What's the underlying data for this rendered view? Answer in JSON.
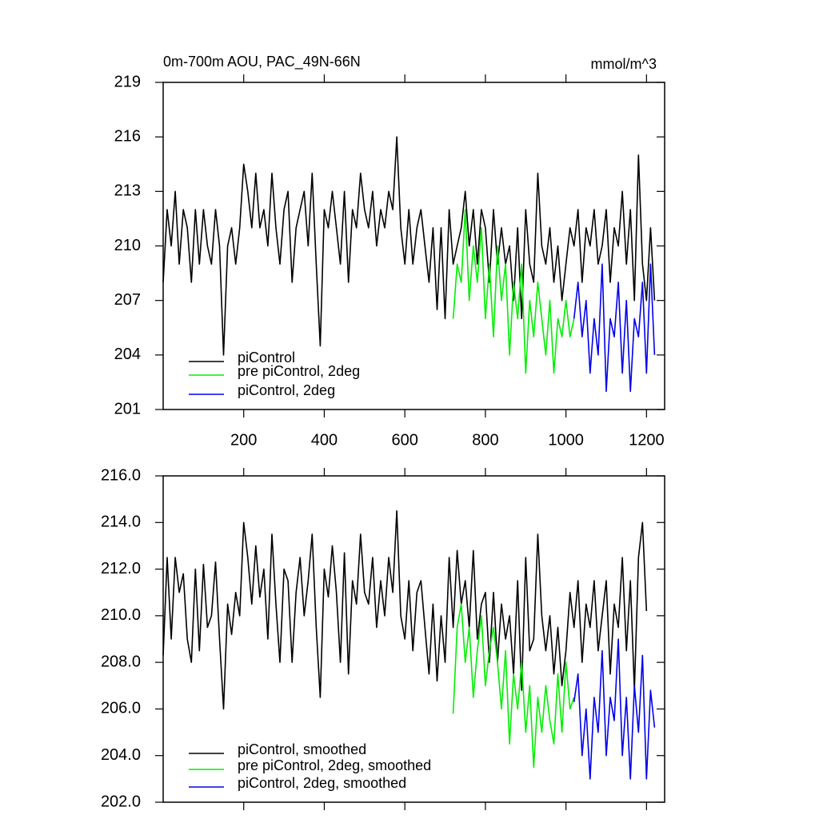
{
  "chart_data": [
    {
      "type": "line",
      "title": "0m-700m AOU, PAC_49N-66N",
      "units_label": "mmol/m^3",
      "xlim": [
        0,
        1245
      ],
      "xticks": [
        200,
        400,
        600,
        800,
        1000,
        1200
      ],
      "ylim": [
        201,
        219
      ],
      "yticks": [
        201,
        204,
        207,
        210,
        213,
        216,
        219
      ],
      "legend": "lower left",
      "series": [
        {
          "name": "piControl",
          "color": "#000000",
          "x": [
            0,
            10,
            20,
            30,
            40,
            50,
            60,
            70,
            80,
            90,
            100,
            110,
            120,
            130,
            140,
            150,
            160,
            170,
            180,
            190,
            200,
            210,
            220,
            230,
            240,
            250,
            260,
            270,
            280,
            290,
            300,
            310,
            320,
            330,
            340,
            350,
            360,
            370,
            380,
            390,
            400,
            410,
            420,
            430,
            440,
            450,
            460,
            470,
            480,
            490,
            500,
            510,
            520,
            530,
            540,
            550,
            560,
            570,
            580,
            590,
            600,
            610,
            620,
            630,
            640,
            650,
            660,
            670,
            680,
            690,
            700,
            710,
            720,
            730,
            740,
            750,
            760,
            770,
            780,
            790,
            800,
            810,
            820,
            830,
            840,
            850,
            860,
            870,
            880,
            890,
            900,
            910,
            920,
            930,
            940,
            950,
            960,
            970,
            980,
            990,
            1000,
            1010,
            1020,
            1030,
            1040,
            1050,
            1060,
            1070,
            1080,
            1090,
            1100,
            1110,
            1120,
            1130,
            1140,
            1150,
            1160,
            1170,
            1180,
            1190,
            1200,
            1210,
            1220
          ],
          "values": [
            208,
            212,
            210,
            213,
            209,
            212,
            211,
            208,
            212,
            209,
            212,
            210,
            209,
            212,
            210,
            204,
            210,
            211,
            209,
            211,
            214.5,
            213,
            211,
            214,
            211,
            212,
            210,
            214,
            211,
            209,
            212,
            213,
            208,
            211,
            212,
            213,
            210,
            214,
            209,
            204.5,
            212,
            211,
            213,
            211,
            209,
            213,
            208,
            212,
            211,
            214,
            212,
            211,
            213,
            210,
            212,
            211,
            213,
            212,
            216,
            211,
            209,
            212,
            209,
            211,
            212,
            210,
            208,
            211,
            206.5,
            211,
            206,
            212,
            209,
            210,
            211,
            213,
            210,
            212,
            209,
            212,
            211,
            208,
            212,
            209,
            211,
            209,
            210,
            207,
            211,
            206,
            212,
            209,
            208,
            214,
            210,
            209,
            211,
            208,
            210,
            207,
            209,
            211,
            210,
            212,
            208,
            211,
            210,
            212,
            209,
            210,
            212,
            208,
            211,
            210,
            213,
            209,
            212,
            207,
            215,
            209,
            207,
            211,
            207
          ]
        },
        {
          "name": "pre piControl, 2deg",
          "color": "#00ee00",
          "x": [
            720,
            730,
            740,
            750,
            760,
            770,
            780,
            790,
            800,
            810,
            820,
            830,
            840,
            850,
            860,
            870,
            880,
            890,
            900,
            910,
            920,
            930,
            940,
            950,
            960,
            970,
            980,
            990,
            1000,
            1010,
            1020
          ],
          "values": [
            206,
            209,
            208,
            212,
            207,
            210,
            208,
            211,
            206,
            209,
            205,
            210,
            207,
            209,
            204,
            208,
            206,
            209,
            203,
            207,
            205,
            208,
            206,
            204,
            207,
            203,
            206,
            205,
            207,
            205,
            206
          ]
        },
        {
          "name": "piControl, 2deg",
          "color": "#0000ee",
          "x": [
            1020,
            1030,
            1040,
            1050,
            1060,
            1070,
            1080,
            1090,
            1100,
            1110,
            1120,
            1130,
            1140,
            1150,
            1160,
            1170,
            1180,
            1190,
            1200,
            1210,
            1220
          ],
          "values": [
            206,
            208,
            205,
            207,
            203,
            206,
            204,
            209,
            202,
            206,
            205,
            208,
            203,
            207,
            202,
            206,
            205,
            208,
            203,
            209,
            204
          ]
        }
      ]
    },
    {
      "type": "line",
      "xlim": [
        0,
        1245
      ],
      "xticks": [
        200,
        400,
        600,
        800,
        1000,
        1200
      ],
      "ylim": [
        202,
        216
      ],
      "yticks": [
        {
          "value": 202,
          "label": "202.0"
        },
        {
          "value": 204,
          "label": "204.0"
        },
        {
          "value": 206,
          "label": "206.0"
        },
        {
          "value": 208,
          "label": "208.0"
        },
        {
          "value": 210,
          "label": "210.0"
        },
        {
          "value": 212,
          "label": "212.0"
        },
        {
          "value": 214,
          "label": "214.0"
        },
        {
          "value": 216,
          "label": "216.0"
        }
      ],
      "legend": "lower left",
      "series": [
        {
          "name": "piControl, smoothed",
          "color": "#000000",
          "x": [
            0,
            10,
            20,
            30,
            40,
            50,
            60,
            70,
            80,
            90,
            100,
            110,
            120,
            130,
            140,
            150,
            160,
            170,
            180,
            190,
            200,
            210,
            220,
            230,
            240,
            250,
            260,
            270,
            280,
            290,
            300,
            310,
            320,
            330,
            340,
            350,
            360,
            370,
            380,
            390,
            400,
            410,
            420,
            430,
            440,
            450,
            460,
            470,
            480,
            490,
            500,
            510,
            520,
            530,
            540,
            550,
            560,
            570,
            580,
            590,
            600,
            610,
            620,
            630,
            640,
            650,
            660,
            670,
            680,
            690,
            700,
            710,
            720,
            730,
            740,
            750,
            760,
            770,
            780,
            790,
            800,
            810,
            820,
            830,
            840,
            850,
            860,
            870,
            880,
            890,
            900,
            910,
            920,
            930,
            940,
            950,
            960,
            970,
            980,
            990,
            1000,
            1010,
            1020,
            1030,
            1040,
            1050,
            1060,
            1070,
            1080,
            1090,
            1100,
            1110,
            1120,
            1130,
            1140,
            1150,
            1160,
            1170,
            1180,
            1190,
            1200
          ],
          "values": [
            208.3,
            212.5,
            209.0,
            212.5,
            211.0,
            211.8,
            209.0,
            208.0,
            212.0,
            208.5,
            212.2,
            209.5,
            210.0,
            212.3,
            209.0,
            206.0,
            210.5,
            209.2,
            211.0,
            210.0,
            214.0,
            212.5,
            210.5,
            213.0,
            210.8,
            212.0,
            209.0,
            213.5,
            210.5,
            208.0,
            212.0,
            211.5,
            208.0,
            211.0,
            212.5,
            210.0,
            211.5,
            213.5,
            209.5,
            206.5,
            212.0,
            210.8,
            213.0,
            211.0,
            208.0,
            212.7,
            207.5,
            211.5,
            210.5,
            213.5,
            211.0,
            210.5,
            212.5,
            209.5,
            211.5,
            210.0,
            212.5,
            211.0,
            214.5,
            210.0,
            209.0,
            211.5,
            208.5,
            211.0,
            211.5,
            209.5,
            207.5,
            210.5,
            207.2,
            210.0,
            208.0,
            212.5,
            209.5,
            212.8,
            210.5,
            211.5,
            209.5,
            212.8,
            209.0,
            210.5,
            211.0,
            208.0,
            211.0,
            208.0,
            210.5,
            209.0,
            210.0,
            207.5,
            211.5,
            206.8,
            212.5,
            208.5,
            209.0,
            213.5,
            210.0,
            208.5,
            210.0,
            207.5,
            209.5,
            207.0,
            208.5,
            211.0,
            209.5,
            211.5,
            208.0,
            210.5,
            209.5,
            211.5,
            208.5,
            210.0,
            211.5,
            207.5,
            210.5,
            209.5,
            212.5,
            208.5,
            211.5,
            206.8,
            212.5,
            214.0,
            210.2
          ]
        },
        {
          "name": "pre piControl, 2deg, smoothed",
          "color": "#00ee00",
          "x": [
            720,
            730,
            740,
            750,
            760,
            770,
            780,
            790,
            800,
            810,
            820,
            830,
            840,
            850,
            860,
            870,
            880,
            890,
            900,
            910,
            920,
            930,
            940,
            950,
            960,
            970,
            980,
            990,
            1000,
            1010,
            1020
          ],
          "values": [
            205.8,
            209.5,
            210.5,
            208.0,
            209.5,
            206.5,
            208.5,
            210.0,
            207.0,
            208.5,
            209.5,
            208.0,
            206.0,
            208.5,
            204.5,
            207.5,
            206.0,
            208.0,
            205.0,
            207.0,
            203.5,
            206.5,
            205.0,
            207.0,
            205.5,
            204.5,
            207.5,
            205.0,
            208.0,
            206.0,
            206.5
          ]
        },
        {
          "name": "piControl, 2deg, smoothed",
          "color": "#0000ee",
          "x": [
            1020,
            1030,
            1040,
            1050,
            1060,
            1070,
            1080,
            1090,
            1100,
            1110,
            1120,
            1130,
            1140,
            1150,
            1160,
            1170,
            1180,
            1190,
            1200,
            1210,
            1220
          ],
          "values": [
            206.3,
            207.5,
            204.0,
            206.0,
            203.0,
            206.5,
            205.0,
            208.5,
            204.0,
            206.5,
            205.5,
            209.0,
            204.0,
            206.5,
            203.0,
            207.0,
            205.0,
            208.3,
            203.0,
            206.8,
            205.2
          ]
        }
      ]
    }
  ]
}
